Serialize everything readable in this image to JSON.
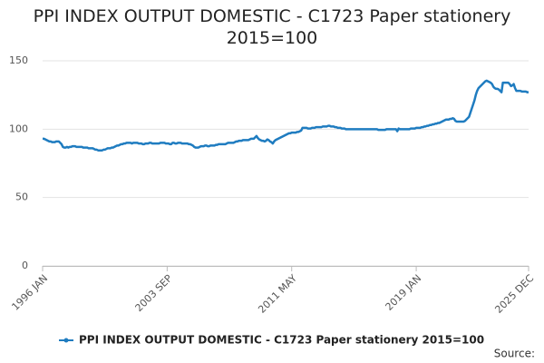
{
  "chart_data": {
    "type": "line",
    "title": "PPI INDEX OUTPUT DOMESTIC - C1723 Paper stationery 2015=100",
    "source": "Source:",
    "categories": [
      "1996 JAN",
      null,
      null,
      null,
      null,
      null,
      null,
      null,
      null,
      null,
      null,
      null,
      null,
      null,
      null,
      null,
      null,
      null,
      null,
      null,
      null,
      null,
      null,
      null,
      null,
      null,
      null,
      null,
      null,
      null,
      null,
      null,
      null,
      null,
      null,
      null,
      null,
      null,
      null,
      null,
      null,
      null,
      null,
      null,
      null,
      null,
      null,
      null,
      null,
      null,
      null,
      null,
      null,
      null,
      null,
      null,
      null,
      null,
      null,
      null,
      null,
      null,
      null,
      null,
      null,
      null,
      null,
      null,
      null,
      null,
      null,
      null,
      null,
      null,
      null,
      null,
      null,
      null,
      null,
      null,
      null,
      null,
      null,
      null,
      null,
      null,
      null,
      null,
      null,
      null,
      null,
      null,
      "2003 SEP",
      null,
      null,
      null,
      null,
      null,
      null,
      null,
      null,
      null,
      null,
      null,
      null,
      null,
      null,
      null,
      null,
      null,
      null,
      null,
      null,
      null,
      null,
      null,
      null,
      null,
      null,
      null,
      null,
      null,
      null,
      null,
      null,
      null,
      null,
      null,
      null,
      null,
      null,
      null,
      null,
      null,
      null,
      null,
      null,
      null,
      null,
      null,
      null,
      null,
      null,
      null,
      null,
      null,
      null,
      null,
      null,
      null,
      null,
      null,
      null,
      null,
      null,
      null,
      null,
      null,
      null,
      null,
      null,
      null,
      null,
      null,
      null,
      null,
      null,
      null,
      null,
      null,
      null,
      null,
      null,
      null,
      null,
      null,
      null,
      null,
      null,
      null,
      null,
      null,
      null,
      null,
      "2011 MAY",
      null,
      null,
      null,
      null,
      null,
      null,
      null,
      null,
      null,
      null,
      null,
      null,
      null,
      null,
      null,
      null,
      null,
      null,
      null,
      null,
      null,
      null,
      null,
      null,
      null,
      null,
      null,
      null,
      null,
      null,
      null,
      null,
      null,
      null,
      null,
      null,
      null,
      null,
      null,
      null,
      null,
      null,
      null,
      null,
      null,
      null,
      null,
      null,
      null,
      null,
      null,
      null,
      null,
      null,
      null,
      null,
      null,
      null,
      null,
      null,
      null,
      null,
      null,
      null,
      null,
      null,
      null,
      null,
      null,
      null,
      null,
      null,
      null,
      null,
      null,
      null,
      null,
      null,
      null,
      null,
      null,
      null,
      null,
      null,
      null,
      null,
      null,
      null,
      null,
      null,
      null,
      "2019 JAN",
      null,
      null,
      null,
      null,
      null,
      null,
      null,
      null,
      null,
      null,
      null,
      null,
      null,
      null,
      null,
      null,
      null,
      null,
      null,
      null,
      null,
      null,
      null,
      null,
      null,
      null,
      null,
      null,
      null,
      null,
      null,
      null,
      null,
      null,
      null,
      null,
      null,
      null,
      null,
      null,
      null,
      null,
      null,
      null,
      null,
      null,
      null,
      null,
      null,
      null,
      null,
      null,
      null,
      null,
      null,
      null,
      null,
      null,
      null,
      null,
      null,
      null,
      null,
      null,
      null,
      null,
      null,
      null,
      null,
      null,
      null,
      null,
      null,
      null,
      null,
      null,
      null,
      null,
      null,
      null,
      null,
      null,
      "2025 DEC"
    ],
    "series": [
      {
        "name": "PPI INDEX OUTPUT DOMESTIC - C1723 Paper stationery 2015=100",
        "color": "#1f7cc0",
        "values": [
          93,
          93,
          92.5,
          92,
          91.5,
          91,
          91,
          90.5,
          90.5,
          90.5,
          91,
          91,
          91,
          90,
          89,
          87,
          86.5,
          86.5,
          87,
          86.5,
          87,
          87,
          87.5,
          87.5,
          87.5,
          87,
          87,
          87,
          87,
          87,
          86.5,
          86.5,
          86.5,
          86.5,
          86,
          86,
          86,
          86,
          85.5,
          85,
          85,
          84.5,
          84.5,
          84.5,
          84.5,
          85,
          85,
          85.5,
          86,
          86,
          86,
          86.5,
          86.5,
          87,
          87.5,
          88,
          88,
          88.5,
          89,
          89,
          89.5,
          89.5,
          90,
          90,
          90,
          90,
          89.5,
          90,
          90,
          90,
          90,
          89.5,
          89.5,
          89.5,
          89,
          89,
          89.5,
          89.5,
          89.5,
          90,
          90,
          89.5,
          89.5,
          89.5,
          89.5,
          89.5,
          89.5,
          90,
          90,
          90,
          90,
          89.5,
          89.5,
          89.5,
          89,
          89,
          90,
          90,
          89.5,
          89.5,
          90,
          90,
          90,
          89.5,
          89.5,
          89.5,
          89.5,
          89.5,
          89,
          89,
          88.5,
          88,
          87,
          86.5,
          86.5,
          86.5,
          87,
          87.5,
          87.5,
          87.5,
          88,
          88,
          87.5,
          87.5,
          88,
          88,
          88,
          88,
          88.5,
          88.5,
          89,
          89,
          89,
          89,
          89,
          89,
          89.5,
          90,
          90,
          90,
          90,
          90,
          90.5,
          91,
          91,
          91.5,
          91.5,
          91.5,
          92,
          92,
          92,
          92,
          92,
          92.5,
          93,
          93,
          93,
          94,
          95,
          93.5,
          92.5,
          92,
          91.5,
          91.5,
          91,
          91.5,
          92.5,
          92,
          91,
          90.5,
          89.5,
          91,
          92,
          92.5,
          93,
          93.5,
          94,
          94.5,
          95,
          95.5,
          96,
          96.5,
          97,
          97,
          97.5,
          97.5,
          97.5,
          97.5,
          98,
          98,
          98.5,
          99,
          101,
          101,
          101,
          101,
          100.5,
          100.5,
          100.5,
          101,
          101,
          101,
          101.5,
          101.5,
          101.5,
          101.5,
          101.5,
          102,
          102,
          102,
          102,
          102.5,
          102.5,
          102,
          102,
          102,
          101.5,
          101.5,
          101,
          101,
          101,
          100.5,
          100.5,
          100.5,
          100,
          100,
          100,
          100,
          100,
          100,
          100,
          100,
          100,
          100,
          100,
          100,
          100,
          100,
          100,
          100,
          100,
          100,
          100,
          100,
          100,
          100,
          100,
          100,
          99.5,
          99.5,
          99.5,
          99.5,
          99.5,
          99.5,
          100,
          100,
          100,
          100,
          100,
          100,
          100,
          100,
          98.5,
          100.5,
          100,
          100,
          100,
          100,
          100,
          100,
          100,
          100,
          100.5,
          100.5,
          100.5,
          100.5,
          101,
          101,
          101,
          101,
          101.5,
          101.5,
          102,
          102,
          102.5,
          102.5,
          103,
          103,
          103.5,
          103.5,
          104,
          104,
          104.5,
          104.5,
          105,
          105.5,
          106,
          106.5,
          107,
          107,
          107,
          107.5,
          107.5,
          108,
          107.5,
          106,
          105.5,
          105.5,
          105.5,
          105.5,
          105.5,
          105.5,
          106,
          107,
          108,
          109,
          112,
          115,
          118,
          121,
          125,
          128,
          130,
          131,
          132,
          133,
          134,
          135,
          135.5,
          135,
          134.5,
          134,
          133,
          131,
          130,
          129.5,
          129.5,
          129,
          128,
          127,
          134,
          134,
          134,
          134,
          134,
          133,
          131.5,
          132,
          133,
          130,
          128,
          128,
          128,
          128,
          127.5,
          127.5,
          127.5,
          127.5,
          127,
          127
        ]
      }
    ],
    "ylim": [
      0,
      150
    ],
    "yticks": [
      0,
      50,
      100,
      150
    ],
    "grid": true
  }
}
